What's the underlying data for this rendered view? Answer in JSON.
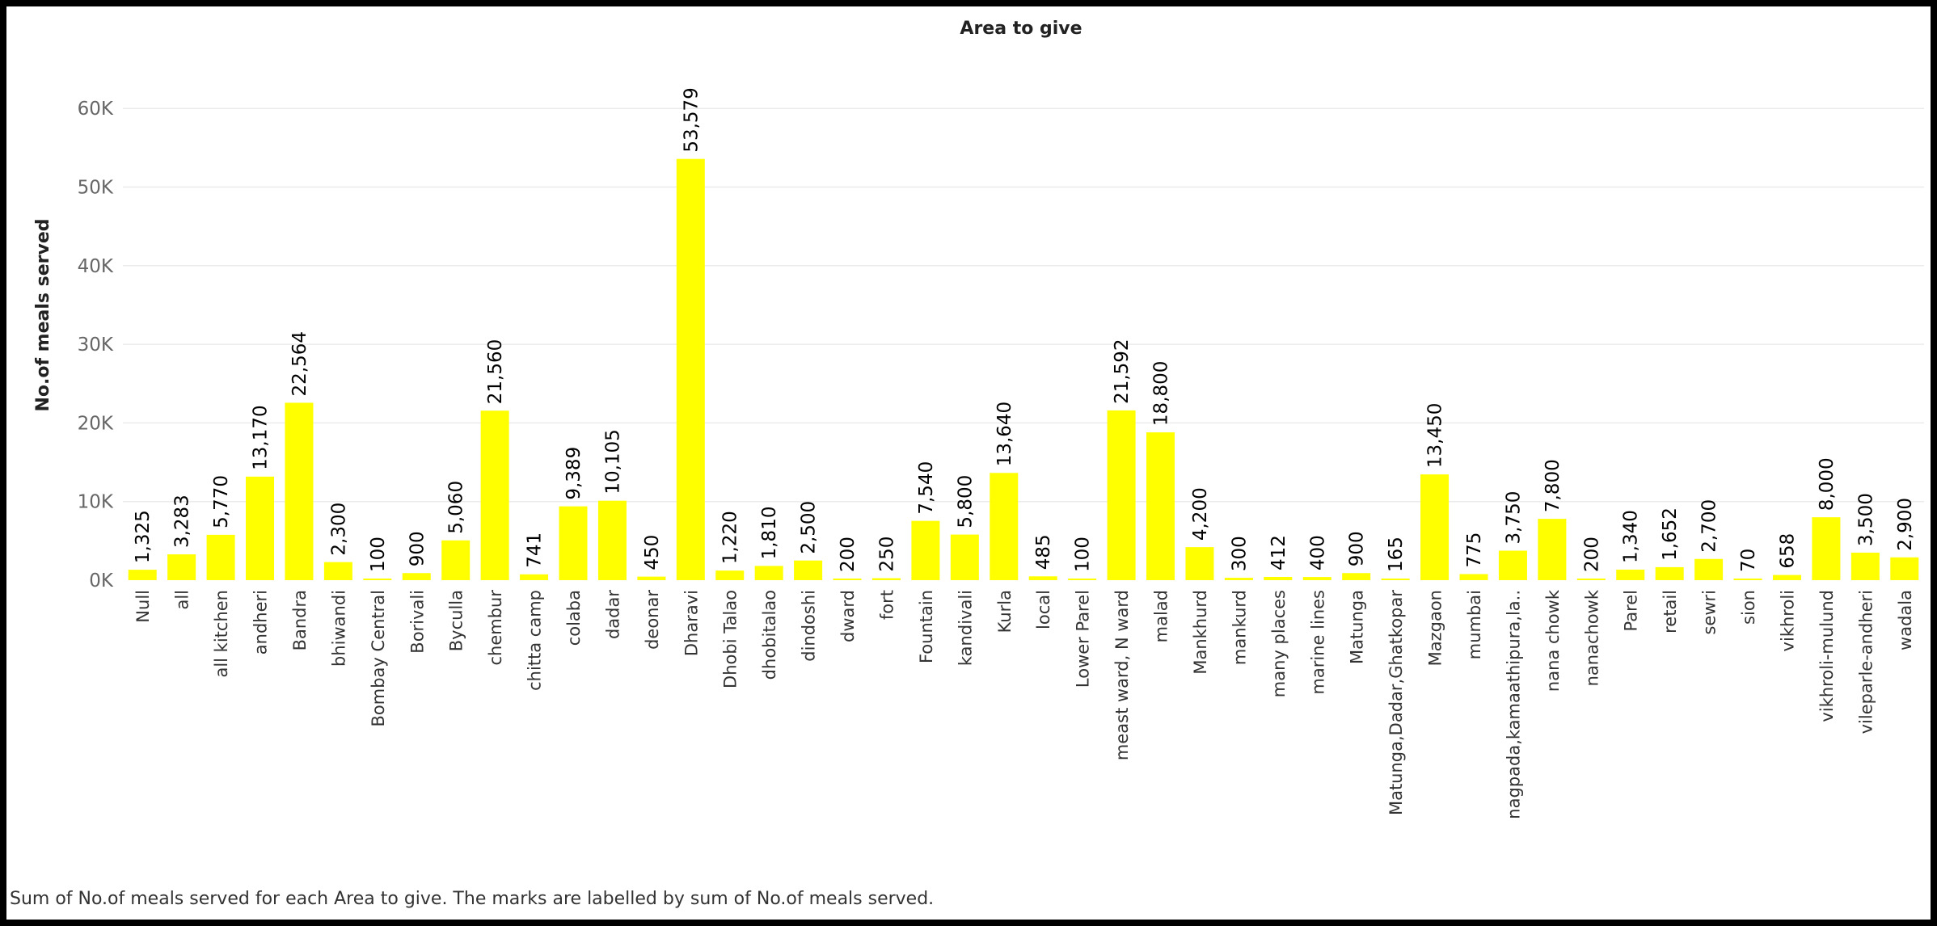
{
  "chart_data": {
    "type": "bar",
    "title": "Area to give",
    "ylabel": "No.of meals served",
    "xlabel": "",
    "ylim": [
      0,
      66000
    ],
    "yticks": [
      0,
      10000,
      20000,
      30000,
      40000,
      50000,
      60000
    ],
    "ytick_labels": [
      "0K",
      "10K",
      "20K",
      "30K",
      "40K",
      "50K",
      "60K"
    ],
    "grid": true,
    "bar_color": "#FFFF00",
    "categories": [
      "Null",
      "all",
      "all kitchen",
      "andheri",
      "Bandra",
      "bhiwandi",
      "Bombay Central",
      "Borivali",
      "Byculla",
      "chembur",
      "chitta camp",
      "colaba",
      "dadar",
      "deonar",
      "Dharavi",
      "Dhobi Talao",
      "dhobitalao",
      "dindoshi",
      "dward",
      "fort",
      "Fountain",
      "kandivali",
      "Kurla",
      "local",
      "Lower Parel",
      "meast ward, N ward",
      "malad",
      "Mankhurd",
      "mankurd",
      "many places",
      "marine lines",
      "Matunga",
      "Matunga,Dadar,Ghatkopar",
      "Mazgaon",
      "mumbai",
      "nagpada,kamaathipura,la..",
      "nana chowk",
      "nanachowk",
      "Parel",
      "retail",
      "sewri",
      "sion",
      "vikhroli",
      "vikhroli-mulund",
      "vileparle-andheri",
      "wadala"
    ],
    "values": [
      1325,
      3283,
      5770,
      13170,
      22564,
      2300,
      100,
      900,
      5060,
      21560,
      741,
      9389,
      10105,
      450,
      53579,
      1220,
      1810,
      2500,
      200,
      250,
      7540,
      5800,
      13640,
      485,
      100,
      21592,
      18800,
      4200,
      300,
      412,
      400,
      900,
      165,
      13450,
      775,
      3750,
      7800,
      200,
      1340,
      1652,
      2700,
      70,
      658,
      8000,
      3500,
      2900
    ],
    "value_labels": [
      "1,325",
      "3,283",
      "5,770",
      "13,170",
      "22,564",
      "2,300",
      "100",
      "900",
      "5,060",
      "21,560",
      "741",
      "9,389",
      "10,105",
      "450",
      "53,579",
      "1,220",
      "1,810",
      "2,500",
      "200",
      "250",
      "7,540",
      "5,800",
      "13,640",
      "485",
      "100",
      "21,592",
      "18,800",
      "4,200",
      "300",
      "412",
      "400",
      "900",
      "165",
      "13,450",
      "775",
      "3,750",
      "7,800",
      "200",
      "1,340",
      "1,652",
      "2,700",
      "70",
      "658",
      "8,000",
      "3,500",
      "2,900"
    ]
  },
  "caption": "Sum of No.of meals served for each Area to give.  The marks are labelled by sum of No.of meals served."
}
